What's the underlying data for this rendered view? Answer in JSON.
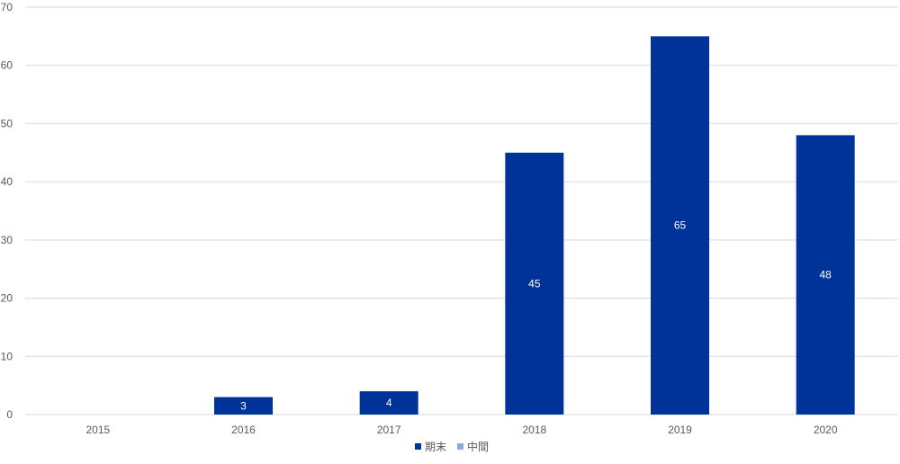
{
  "chart_data": {
    "type": "bar",
    "title": "",
    "xlabel": "",
    "ylabel": "",
    "categories": [
      "2015",
      "2016",
      "2017",
      "2018",
      "2019",
      "2020"
    ],
    "series": [
      {
        "name": "期末",
        "values": [
          0,
          3,
          4,
          45,
          65,
          48
        ],
        "color": "#003399"
      },
      {
        "name": "中間",
        "values": [
          0,
          0,
          0,
          0,
          0,
          0
        ],
        "color": "#8EA9DB"
      }
    ],
    "ylim": [
      0,
      70
    ],
    "yticks": [
      0,
      10,
      20,
      30,
      40,
      50,
      60,
      70
    ],
    "grid": true,
    "gridline_color": "#D9D9D9",
    "legend_position": "bottom",
    "data_labels": true
  }
}
